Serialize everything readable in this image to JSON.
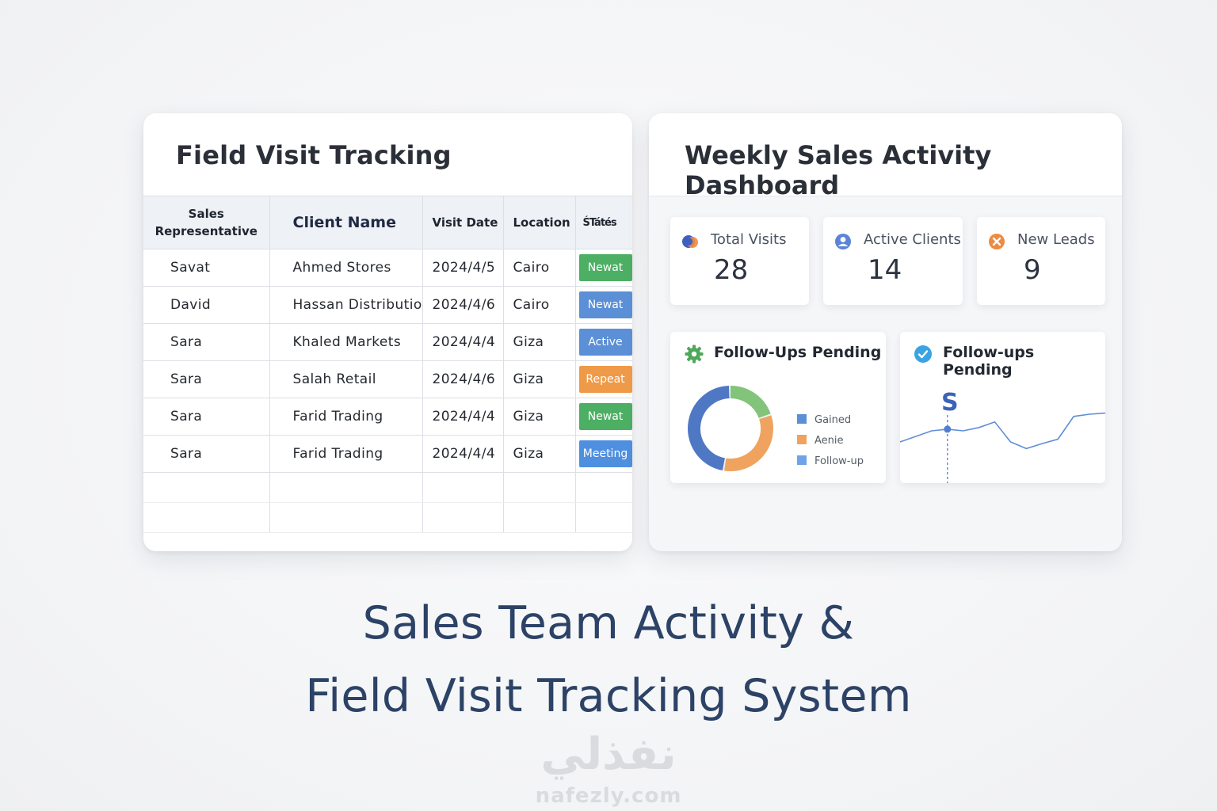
{
  "field_visit": {
    "title": "Field Visit Tracking",
    "columns": {
      "rep": [
        "Sales",
        "Representative"
      ],
      "client": "Client Name",
      "date": "Visit Date",
      "location": "Location",
      "status": "ŚTátés"
    },
    "rows": [
      {
        "rep": "Savat",
        "client": "Ahmed Stores",
        "date": "2024/4/5",
        "location": "Cairo",
        "status": "Newat",
        "status_color": "#4caf63"
      },
      {
        "rep": "David",
        "client": "Hassan Distribution",
        "date": "2024/4/6",
        "location": "Cairo",
        "status": "Newat",
        "status_color": "#5b8fd6"
      },
      {
        "rep": "Sara",
        "client": "Khaled Markets",
        "date": "2024/4/4",
        "location": "Giza",
        "status": "Active",
        "status_color": "#5b8fd6"
      },
      {
        "rep": "Sara",
        "client": "Salah Retail",
        "date": "2024/4/6",
        "location": "Giza",
        "status": "Repeat",
        "status_color": "#ef9a48"
      },
      {
        "rep": "Sara",
        "client": "Farid Trading",
        "date": "2024/4/4",
        "location": "Giza",
        "status": "Newat",
        "status_color": "#4caf63"
      },
      {
        "rep": "Sara",
        "client": "Farid Trading",
        "date": "2024/4/4",
        "location": "Giza",
        "status": "Meeting",
        "status_color": "#4f8fe0"
      }
    ]
  },
  "dashboard": {
    "title": "Weekly Sales Activity Dashboard",
    "stats": [
      {
        "label": "Total Visits",
        "value": "28",
        "icon": "globe-icon",
        "color": "#3e5fc0"
      },
      {
        "label": "Active Clients",
        "value": "14",
        "icon": "user-icon",
        "color": "#5b84d6"
      },
      {
        "label": "New Leads",
        "value": "9",
        "icon": "lead-icon",
        "color": "#ef8a3f"
      }
    ],
    "followups_donut": {
      "title": "Follow-Ups Pending",
      "icon": "gear-icon",
      "legend": [
        {
          "label": "Gained",
          "color": "#5b8fd6"
        },
        {
          "label": "Aenie",
          "color": "#efa35e"
        },
        {
          "label": "Follow-up",
          "color": "#6fa3e8"
        }
      ]
    },
    "followups_line": {
      "title": "Follow-ups Pending",
      "icon": "check-circle-icon",
      "marker_label": "S"
    }
  },
  "chart_data": [
    {
      "type": "pie",
      "title": "Follow-Ups Pending",
      "labels": [
        "Gained",
        "Aenie",
        "Follow-up"
      ],
      "values": [
        47,
        33,
        20
      ],
      "colors": [
        "#4f78c4",
        "#efa35e",
        "#82c47a"
      ]
    },
    {
      "type": "line",
      "title": "Follow-ups Pending",
      "series": [
        {
          "values": [
            3,
            4,
            5,
            5.3,
            5,
            5.6,
            6.6,
            3,
            1.8,
            2.7,
            3.5,
            7.6,
            8.0,
            8.2
          ]
        }
      ]
    }
  ],
  "headline": {
    "line1": "Sales Team Activity &",
    "line2": "Field Visit Tracking System"
  },
  "watermark": {
    "arabic": "نفذلي",
    "domain": "nafezly.com"
  }
}
